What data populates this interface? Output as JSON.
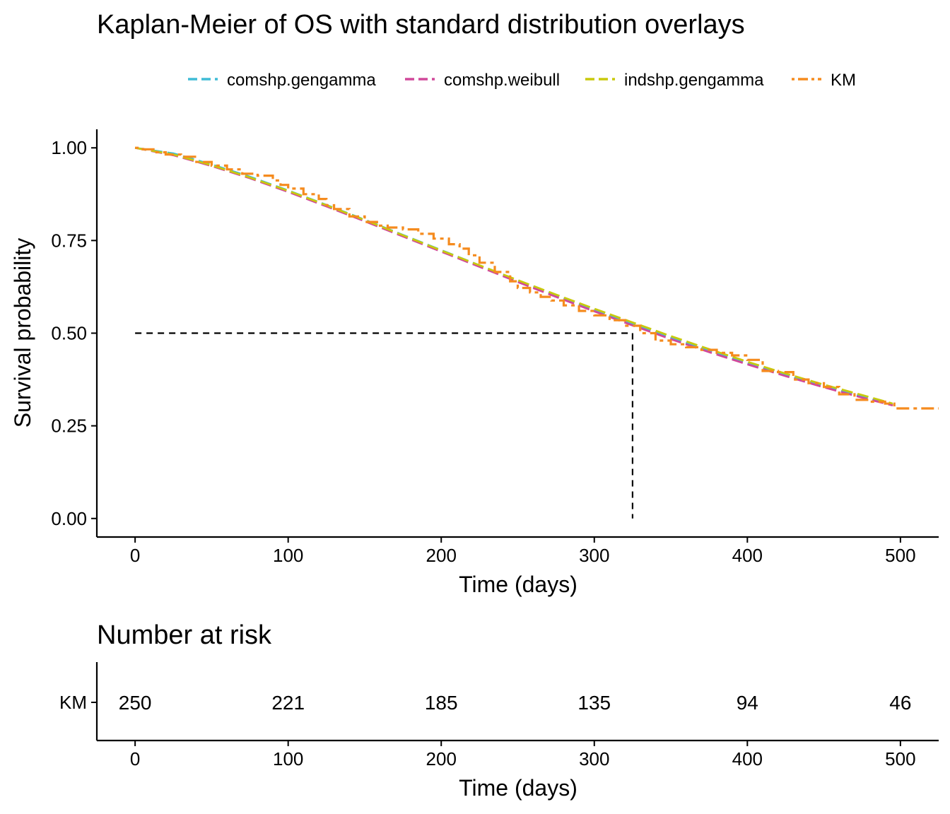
{
  "colors": {
    "comshp.gengamma": "#3fbcd6",
    "comshp.weibull": "#d1489a",
    "indshp.gengamma": "#c9c90c",
    "KM": "#f58b1e",
    "median": "#000000"
  },
  "chart_data": [
    {
      "type": "line",
      "title": "Kaplan-Meier of OS with standard distribution overlays",
      "xlabel": "Time (days)",
      "ylabel": "Survival probability",
      "xlim": [
        -25,
        525
      ],
      "ylim": [
        -0.05,
        1.05
      ],
      "xticks": [
        0,
        100,
        200,
        300,
        400,
        500
      ],
      "yticks": [
        0.0,
        0.25,
        0.5,
        0.75,
        1.0
      ],
      "ytick_labels": [
        "0.00",
        "0.25",
        "0.50",
        "0.75",
        "1.00"
      ],
      "grid": false,
      "legend_position": "top",
      "legend": [
        "comshp.gengamma",
        "comshp.weibull",
        "indshp.gengamma",
        "KM"
      ],
      "median": {
        "survival": 0.5,
        "time": 325
      },
      "series": [
        {
          "name": "comshp.gengamma",
          "line_style": "dashed",
          "x": [
            0,
            25,
            50,
            75,
            100,
            125,
            150,
            175,
            200,
            225,
            250,
            275,
            300,
            325,
            350,
            375,
            400,
            425,
            450,
            475,
            495
          ],
          "y": [
            1.0,
            0.985,
            0.955,
            0.922,
            0.885,
            0.846,
            0.806,
            0.765,
            0.724,
            0.683,
            0.642,
            0.602,
            0.563,
            0.525,
            0.488,
            0.453,
            0.419,
            0.387,
            0.357,
            0.329,
            0.307
          ]
        },
        {
          "name": "comshp.weibull",
          "line_style": "dashed",
          "x": [
            0,
            25,
            50,
            75,
            100,
            125,
            150,
            175,
            200,
            225,
            250,
            275,
            300,
            325,
            350,
            375,
            400,
            425,
            450,
            475,
            495
          ],
          "y": [
            1.0,
            0.98,
            0.951,
            0.918,
            0.881,
            0.842,
            0.802,
            0.761,
            0.72,
            0.679,
            0.638,
            0.598,
            0.559,
            0.521,
            0.484,
            0.449,
            0.416,
            0.384,
            0.354,
            0.326,
            0.305
          ]
        },
        {
          "name": "indshp.gengamma",
          "line_style": "dashed",
          "x": [
            0,
            25,
            50,
            75,
            100,
            125,
            150,
            175,
            200,
            225,
            250,
            275,
            300,
            325,
            350,
            375,
            400,
            425,
            450,
            475,
            495
          ],
          "y": [
            1.0,
            0.982,
            0.953,
            0.92,
            0.884,
            0.845,
            0.805,
            0.764,
            0.723,
            0.683,
            0.643,
            0.604,
            0.566,
            0.529,
            0.492,
            0.457,
            0.423,
            0.391,
            0.361,
            0.333,
            0.31
          ]
        },
        {
          "name": "KM",
          "line_style": "dotdash",
          "x": [
            0,
            5,
            12,
            20,
            30,
            40,
            50,
            60,
            70,
            80,
            90,
            95,
            100,
            110,
            120,
            125,
            130,
            140,
            150,
            158,
            165,
            175,
            185,
            195,
            205,
            212,
            218,
            225,
            235,
            245,
            250,
            258,
            265,
            272,
            280,
            290,
            300,
            310,
            320,
            330,
            340,
            350,
            360,
            370,
            380,
            390,
            400,
            410,
            420,
            430,
            440,
            450,
            460,
            470,
            480,
            490,
            496,
            525
          ],
          "y": [
            1.0,
            0.996,
            0.988,
            0.982,
            0.976,
            0.962,
            0.952,
            0.942,
            0.93,
            0.925,
            0.912,
            0.9,
            0.89,
            0.875,
            0.862,
            0.845,
            0.835,
            0.815,
            0.8,
            0.79,
            0.785,
            0.78,
            0.768,
            0.755,
            0.74,
            0.728,
            0.71,
            0.69,
            0.665,
            0.64,
            0.622,
            0.61,
            0.598,
            0.588,
            0.575,
            0.56,
            0.548,
            0.535,
            0.52,
            0.5,
            0.48,
            0.47,
            0.462,
            0.455,
            0.447,
            0.44,
            0.428,
            0.398,
            0.395,
            0.375,
            0.365,
            0.355,
            0.335,
            0.32,
            0.315,
            0.31,
            0.297,
            0.297
          ]
        }
      ]
    },
    {
      "type": "table",
      "title": "Number at risk",
      "xlabel": "Time (days)",
      "xlim": [
        -25,
        525
      ],
      "xticks": [
        0,
        100,
        200,
        300,
        400,
        500
      ],
      "row_label": "KM",
      "times": [
        0,
        100,
        200,
        300,
        400,
        500
      ],
      "values": [
        "250",
        "221",
        "185",
        "135",
        "94",
        "46"
      ]
    }
  ]
}
